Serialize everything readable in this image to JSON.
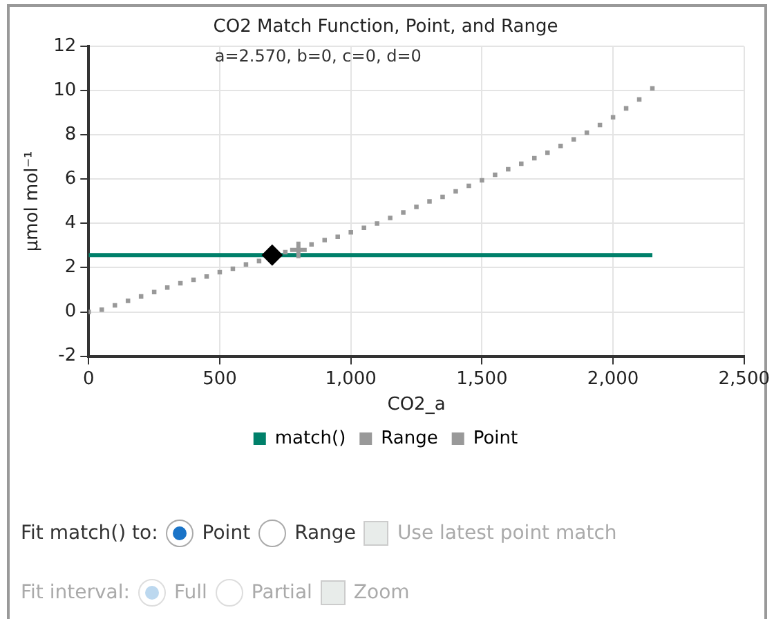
{
  "chart_data": [
    {
      "type": "scatter",
      "title": "CO2 Match Function, Point, and Range",
      "xlabel": "CO2_a",
      "ylabel": "µmol mol⁻¹",
      "annotations": [
        "a=2.570, b=0, c=0, d=0"
      ],
      "xlim": [
        0,
        2500
      ],
      "xticks": [
        0,
        500,
        {
          "value": 1000,
          "label": "1,000"
        },
        {
          "value": 1500,
          "label": "1,500"
        },
        {
          "value": 2000,
          "label": "2,000"
        },
        {
          "value": 2500,
          "label": "2,500"
        }
      ],
      "ylim": [
        -2,
        12
      ],
      "yticks": [
        -2,
        0,
        2,
        4,
        6,
        8,
        10,
        12
      ],
      "grid": true,
      "legend": "bottom",
      "series": [
        {
          "name": "match()",
          "type": "line",
          "color": "#00806a",
          "marker": "none",
          "x": [
            0,
            2150
          ],
          "values": [
            2.57,
            2.57
          ]
        },
        {
          "name": "Range",
          "type": "scatter",
          "color": "#999999",
          "marker": "square",
          "x": [
            0,
            50,
            100,
            150,
            200,
            250,
            300,
            350,
            400,
            450,
            500,
            550,
            600,
            650,
            700,
            750,
            800,
            850,
            900,
            950,
            1000,
            1050,
            1100,
            1150,
            1200,
            1250,
            1300,
            1350,
            1400,
            1450,
            1500,
            1550,
            1600,
            1650,
            1700,
            1750,
            1800,
            1850,
            1900,
            1950,
            2000,
            2050,
            2100,
            2150
          ],
          "values": [
            0,
            0.1,
            0.3,
            0.5,
            0.7,
            0.9,
            1.1,
            1.3,
            1.45,
            1.6,
            1.8,
            1.95,
            2.15,
            2.3,
            null,
            2.7,
            null,
            3.05,
            3.25,
            3.4,
            3.6,
            3.8,
            4.0,
            4.25,
            4.5,
            4.75,
            5.0,
            5.2,
            5.45,
            5.7,
            5.95,
            6.2,
            6.45,
            6.7,
            6.95,
            7.2,
            7.5,
            7.8,
            8.1,
            8.45,
            8.8,
            9.2,
            9.6,
            10.1
          ]
        },
        {
          "name": "Point",
          "type": "scatter",
          "color": "#999999",
          "marker": "cross",
          "x": [
            800
          ],
          "values": [
            2.8
          ]
        },
        {
          "color": "#000000",
          "marker": "diamond",
          "x": [
            700
          ],
          "values": [
            2.57
          ]
        }
      ]
    },
    {
      "type": "other",
      "annotations": [
        "Fit match() to:",
        "Point",
        "Range",
        "Use latest point match",
        "Fit interval:",
        "Full",
        "Partial",
        "Zoom"
      ]
    }
  ]
}
